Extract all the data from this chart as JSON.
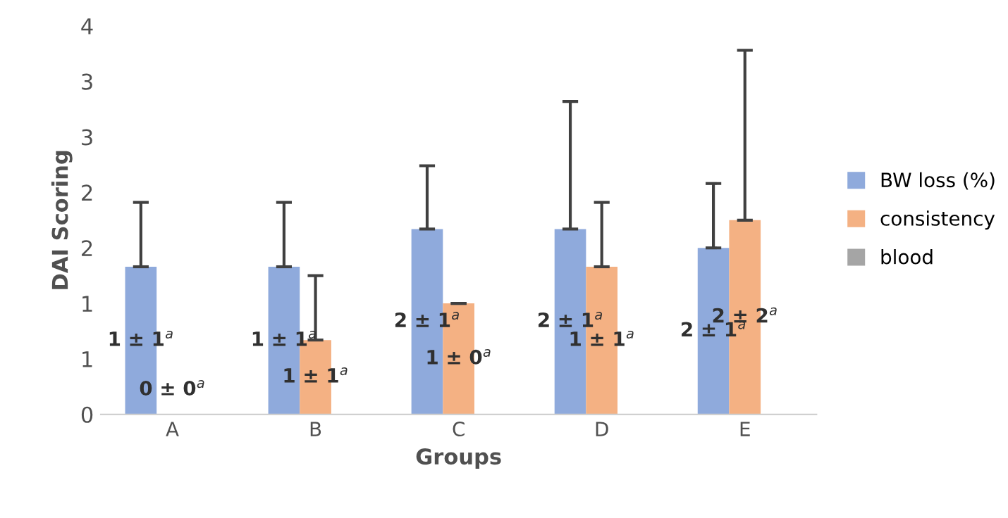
{
  "chart_data": {
    "type": "bar",
    "xlabel": "Groups",
    "ylabel": "DAI Scoring",
    "categories": [
      "A",
      "B",
      "C",
      "D",
      "E"
    ],
    "series": [
      {
        "name": "BW loss (%)",
        "color": "#8faadc",
        "values": [
          1.33,
          1.33,
          1.67,
          1.67,
          1.5
        ],
        "errors": [
          [
            1.33,
            1.91
          ],
          [
            1.33,
            1.91
          ],
          [
            1.67,
            2.24
          ],
          [
            1.67,
            2.82
          ],
          [
            1.5,
            2.08
          ]
        ],
        "value_labels": [
          "1 ± 1$^{a}$",
          "1 ± 1$^{a}$",
          "2 ± 1$^{a}$",
          "2 ± 1$^{a}$",
          "2 ± 1$^{a}$"
        ]
      },
      {
        "name": "consistency",
        "color": "#f4b183",
        "values": [
          0,
          0.67,
          1.0,
          1.33,
          1.75
        ],
        "errors": [
          null,
          [
            0.67,
            1.25
          ],
          [
            1.0,
            1.0
          ],
          [
            1.33,
            1.91
          ],
          [
            1.75,
            3.28
          ]
        ],
        "value_labels": [
          "0 ± 0$^{a}$",
          "1 ± 1$^{a}$",
          "1 ± 0$^{a}$",
          "1 ± 1$^{a}$",
          "2 ± 2$^{a}$"
        ]
      },
      {
        "name": "blood",
        "color": "#a5a5a5",
        "values": [
          null,
          null,
          null,
          null,
          null
        ]
      }
    ],
    "ylim": [
      0,
      3.5
    ],
    "yticks": [
      {
        "value": 0,
        "label": "0"
      },
      {
        "value": 0.5,
        "label": "1"
      },
      {
        "value": 1.0,
        "label": "1"
      },
      {
        "value": 1.5,
        "label": "2"
      },
      {
        "value": 2.0,
        "label": "2"
      },
      {
        "value": 2.5,
        "label": "3"
      },
      {
        "value": 3.0,
        "label": "3"
      },
      {
        "value": 3.5,
        "label": "4"
      }
    ],
    "grid": false,
    "legend": "right"
  }
}
